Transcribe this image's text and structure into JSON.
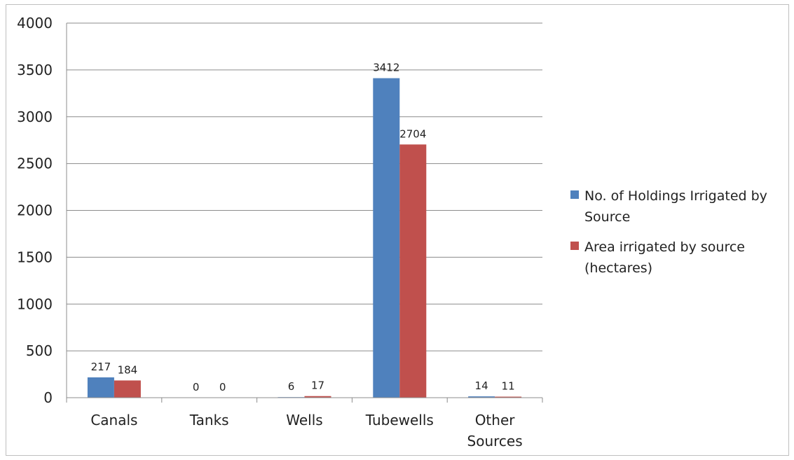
{
  "chart_data": {
    "type": "bar",
    "categories": [
      "Canals",
      "Tanks",
      "Wells",
      "Tubewells",
      "Other Sources"
    ],
    "series": [
      {
        "name": "No. of Holdings Irrigated by Source",
        "color": "#4f81bd",
        "values": [
          217,
          0,
          6,
          3412,
          14
        ]
      },
      {
        "name": "Area irrigated by source (hectares)",
        "color": "#c0504d",
        "values": [
          184,
          0,
          17,
          2704,
          11
        ]
      }
    ],
    "yticks": [
      "0",
      "500",
      "1000",
      "1500",
      "2000",
      "2500",
      "3000",
      "3500",
      "4000"
    ],
    "ylim": [
      0,
      4000
    ],
    "grid": true,
    "legend": "right",
    "title": "",
    "xlabel": "",
    "ylabel": ""
  }
}
